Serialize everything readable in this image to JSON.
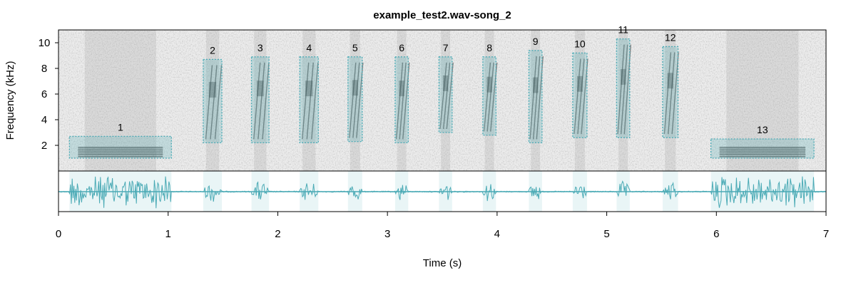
{
  "chart_data": {
    "type": "spectrogram",
    "title": "example_test2.wav-song_2",
    "xlabel": "Time (s)",
    "ylabel": "Frequency (kHz)",
    "xlim": [
      0,
      7
    ],
    "ylim": [
      0,
      11
    ],
    "xticks": [
      0,
      1,
      2,
      3,
      4,
      5,
      6,
      7
    ],
    "yticks": [
      2,
      4,
      6,
      8,
      10
    ],
    "colors": {
      "spectrogram": "#808080",
      "segment_box": "#4aaab5",
      "waveform": "#4aaab5"
    },
    "segments": [
      {
        "label": "1",
        "t_start": 0.1,
        "t_end": 1.03,
        "f_low": 1.0,
        "f_high": 2.7
      },
      {
        "label": "2",
        "t_start": 1.32,
        "t_end": 1.49,
        "f_low": 2.2,
        "f_high": 8.7
      },
      {
        "label": "3",
        "t_start": 1.76,
        "t_end": 1.92,
        "f_low": 2.2,
        "f_high": 8.9
      },
      {
        "label": "4",
        "t_start": 2.2,
        "t_end": 2.37,
        "f_low": 2.2,
        "f_high": 8.9
      },
      {
        "label": "5",
        "t_start": 2.64,
        "t_end": 2.77,
        "f_low": 2.3,
        "f_high": 8.9
      },
      {
        "label": "6",
        "t_start": 3.07,
        "t_end": 3.19,
        "f_low": 2.2,
        "f_high": 8.9
      },
      {
        "label": "7",
        "t_start": 3.47,
        "t_end": 3.59,
        "f_low": 3.0,
        "f_high": 8.9
      },
      {
        "label": "8",
        "t_start": 3.87,
        "t_end": 3.99,
        "f_low": 2.8,
        "f_high": 8.9
      },
      {
        "label": "9",
        "t_start": 4.29,
        "t_end": 4.41,
        "f_low": 2.2,
        "f_high": 9.4
      },
      {
        "label": "10",
        "t_start": 4.69,
        "t_end": 4.82,
        "f_low": 2.6,
        "f_high": 9.2
      },
      {
        "label": "11",
        "t_start": 5.09,
        "t_end": 5.21,
        "f_low": 2.6,
        "f_high": 10.3
      },
      {
        "label": "12",
        "t_start": 5.51,
        "t_end": 5.65,
        "f_low": 2.6,
        "f_high": 9.7
      },
      {
        "label": "13",
        "t_start": 5.95,
        "t_end": 6.89,
        "f_low": 1.0,
        "f_high": 2.5
      }
    ]
  }
}
